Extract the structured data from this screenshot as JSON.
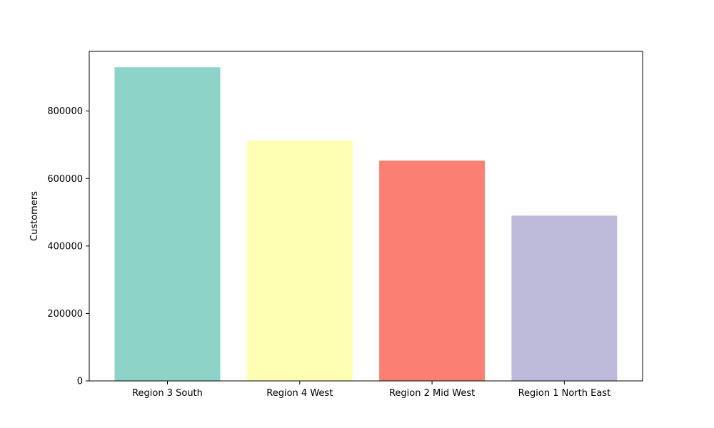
{
  "chart_data": {
    "type": "bar",
    "title": "",
    "xlabel": "",
    "ylabel": "Customers",
    "categories": [
      "Region 3 South",
      "Region 4 West",
      "Region 2 Mid West",
      "Region 1 North East"
    ],
    "values": [
      930000,
      712000,
      653000,
      490000
    ],
    "colors": [
      "#8dd3c7",
      "#ffffb3",
      "#fb8072",
      "#bebada"
    ],
    "ylim": [
      0,
      977000
    ],
    "yticks": [
      0,
      200000,
      400000,
      600000,
      800000
    ],
    "ytick_labels": [
      "0",
      "200000",
      "400000",
      "600000",
      "800000"
    ],
    "grid": false,
    "legend": false
  }
}
